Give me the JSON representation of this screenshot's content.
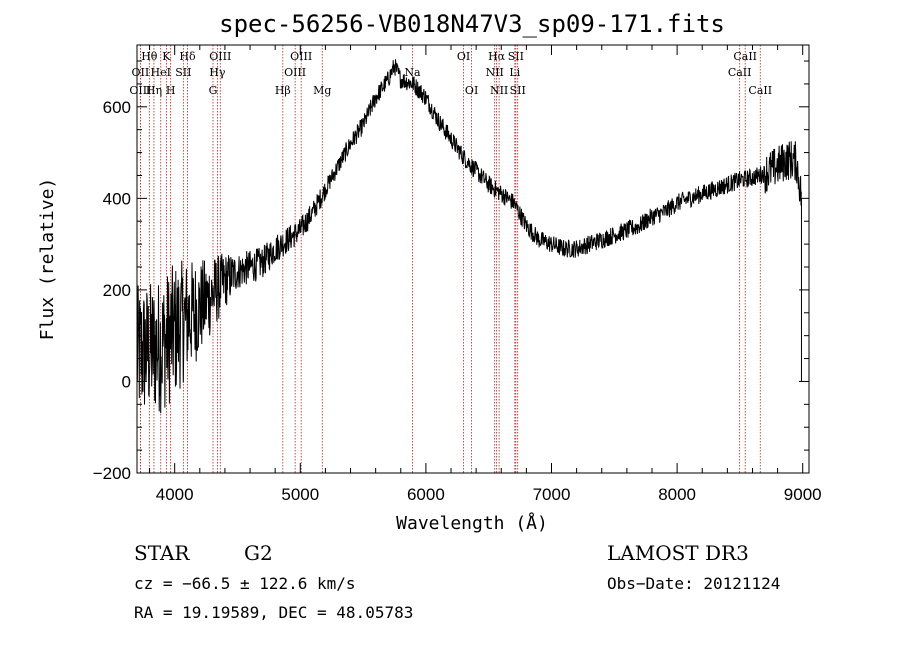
{
  "chart_data": {
    "type": "line",
    "title": "spec-56256-VB018N47V3_sp09-171.fits",
    "xlabel": "Wavelength (Å)",
    "ylabel": "Flux (relative)",
    "xlim": [
      3700,
      9050
    ],
    "ylim": [
      -200,
      735
    ],
    "xticks": [
      4000,
      5000,
      6000,
      7000,
      8000,
      9000
    ],
    "yticks": [
      -200,
      0,
      200,
      400,
      600
    ],
    "xtick_labels": [
      "4000",
      "5000",
      "6000",
      "7000",
      "8000",
      "9000"
    ],
    "ytick_labels": [
      "−200",
      "0",
      "200",
      "400",
      "600"
    ],
    "spectrum": {
      "x": [
        3700,
        3800,
        3900,
        4000,
        4100,
        4200,
        4300,
        4400,
        4500,
        4600,
        4700,
        4800,
        4900,
        5000,
        5100,
        5200,
        5300,
        5400,
        5500,
        5600,
        5700,
        5750,
        5800,
        5900,
        6000,
        6100,
        6200,
        6300,
        6400,
        6500,
        6600,
        6700,
        6800,
        6900,
        7000,
        7100,
        7200,
        7300,
        7400,
        7500,
        7600,
        7700,
        7800,
        7900,
        8000,
        8100,
        8200,
        8300,
        8400,
        8500,
        8600,
        8700,
        8800,
        8850,
        8900,
        8950,
        8990
      ],
      "y": [
        60,
        70,
        80,
        110,
        140,
        160,
        190,
        220,
        240,
        250,
        260,
        290,
        310,
        330,
        370,
        420,
        470,
        520,
        560,
        620,
        660,
        690,
        660,
        650,
        620,
        570,
        530,
        490,
        460,
        430,
        410,
        390,
        340,
        310,
        300,
        290,
        290,
        300,
        310,
        320,
        330,
        340,
        360,
        370,
        390,
        400,
        410,
        420,
        430,
        440,
        445,
        455,
        470,
        480,
        485,
        480,
        400
      ]
    },
    "emission_lines": [
      {
        "name": "Hθ",
        "wl": 3798,
        "row": 1
      },
      {
        "name": "OII",
        "wl": 3727,
        "row": 2
      },
      {
        "name": "OIII",
        "wl": 3727,
        "row": 3
      },
      {
        "name": "HeI",
        "wl": 3889,
        "row": 2
      },
      {
        "name": "Hη",
        "wl": 3835,
        "row": 3
      },
      {
        "name": "K",
        "wl": 3934,
        "row": 1
      },
      {
        "name": "H",
        "wl": 3968,
        "row": 3
      },
      {
        "name": "SII",
        "wl": 4069,
        "row": 2
      },
      {
        "name": "Hδ",
        "wl": 4102,
        "row": 1
      },
      {
        "name": "OIII",
        "wl": 4363,
        "row": 1
      },
      {
        "name": "Hγ",
        "wl": 4340,
        "row": 2
      },
      {
        "name": "G",
        "wl": 4305,
        "row": 3
      },
      {
        "name": "Hβ",
        "wl": 4861,
        "row": 3
      },
      {
        "name": "OIII",
        "wl": 5007,
        "row": 1
      },
      {
        "name": "OIII",
        "wl": 4959,
        "row": 2
      },
      {
        "name": "Mg",
        "wl": 5175,
        "row": 3
      },
      {
        "name": "Na",
        "wl": 5893,
        "row": 2
      },
      {
        "name": "OI",
        "wl": 6300,
        "row": 1
      },
      {
        "name": "OI",
        "wl": 6364,
        "row": 3
      },
      {
        "name": "Hα",
        "wl": 6563,
        "row": 1
      },
      {
        "name": "NII",
        "wl": 6548,
        "row": 2
      },
      {
        "name": "NII",
        "wl": 6583,
        "row": 3
      },
      {
        "name": "SII",
        "wl": 6716,
        "row": 1
      },
      {
        "name": "Li",
        "wl": 6708,
        "row": 2
      },
      {
        "name": "SII",
        "wl": 6731,
        "row": 3
      },
      {
        "name": "CaII",
        "wl": 8542,
        "row": 1
      },
      {
        "name": "CaII",
        "wl": 8498,
        "row": 2
      },
      {
        "name": "CaII",
        "wl": 8662,
        "row": 3
      }
    ]
  },
  "info": {
    "object_class": "STAR",
    "subclass": "G2",
    "survey": "LAMOST DR3",
    "cz": "cz = −66.5 ± 122.6 km/s",
    "obs_date": "Obs−Date: 20121124",
    "coords": "RA =  19.19589, DEC =  48.05783"
  },
  "colors": {
    "line_marker": "#b22222",
    "spectrum": "#000000",
    "axis": "#000000"
  }
}
